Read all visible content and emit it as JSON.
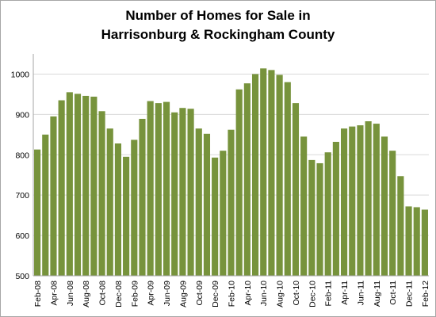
{
  "chart_data": {
    "type": "bar",
    "title_line1": "Number of Homes for Sale in",
    "title_line2": "Harrisonburg & Rockingham County",
    "xlabel": "",
    "ylabel": "",
    "ylim": [
      500,
      1050
    ],
    "yticks": [
      500,
      600,
      700,
      800,
      900,
      1000
    ],
    "grid": "horizontal",
    "legend": "none",
    "bar_color": "#77933c",
    "categories": [
      "Feb-08",
      "Mar-08",
      "Apr-08",
      "May-08",
      "Jun-08",
      "Jul-08",
      "Aug-08",
      "Sep-08",
      "Oct-08",
      "Nov-08",
      "Dec-08",
      "Jan-09",
      "Feb-09",
      "Mar-09",
      "Apr-09",
      "May-09",
      "Jun-09",
      "Jul-09",
      "Aug-09",
      "Sep-09",
      "Oct-09",
      "Nov-09",
      "Dec-09",
      "Jan-10",
      "Feb-10",
      "Mar-10",
      "Apr-10",
      "May-10",
      "Jun-10",
      "Jul-10",
      "Aug-10",
      "Sep-10",
      "Oct-10",
      "Nov-10",
      "Dec-10",
      "Jan-11",
      "Feb-11",
      "Mar-11",
      "Apr-11",
      "May-11",
      "Jun-11",
      "Jul-11",
      "Aug-11",
      "Sep-11",
      "Oct-11",
      "Nov-11",
      "Dec-11",
      "Jan-12",
      "Feb-12"
    ],
    "values": [
      813,
      850,
      895,
      935,
      955,
      951,
      946,
      944,
      908,
      865,
      828,
      795,
      837,
      889,
      933,
      928,
      931,
      905,
      916,
      914,
      865,
      852,
      793,
      810,
      862,
      962,
      977,
      1000,
      1014,
      1010,
      998,
      980,
      928,
      845,
      787,
      779,
      806,
      832,
      865,
      870,
      873,
      883,
      877,
      845,
      810,
      747,
      672,
      670,
      664
    ],
    "visible_tick_labels": [
      "Feb-08",
      "Apr-08",
      "Jun-08",
      "Aug-08",
      "Oct-08",
      "Dec-08",
      "Feb-09",
      "Apr-09",
      "Jun-09",
      "Aug-09",
      "Oct-09",
      "Dec-09",
      "Feb-10",
      "Apr-10",
      "Jun-10",
      "Aug-10",
      "Oct-10",
      "Dec-10",
      "Feb-11",
      "Apr-11",
      "Jun-11",
      "Aug-11",
      "Oct-11",
      "Dec-11",
      "Feb-12"
    ]
  }
}
